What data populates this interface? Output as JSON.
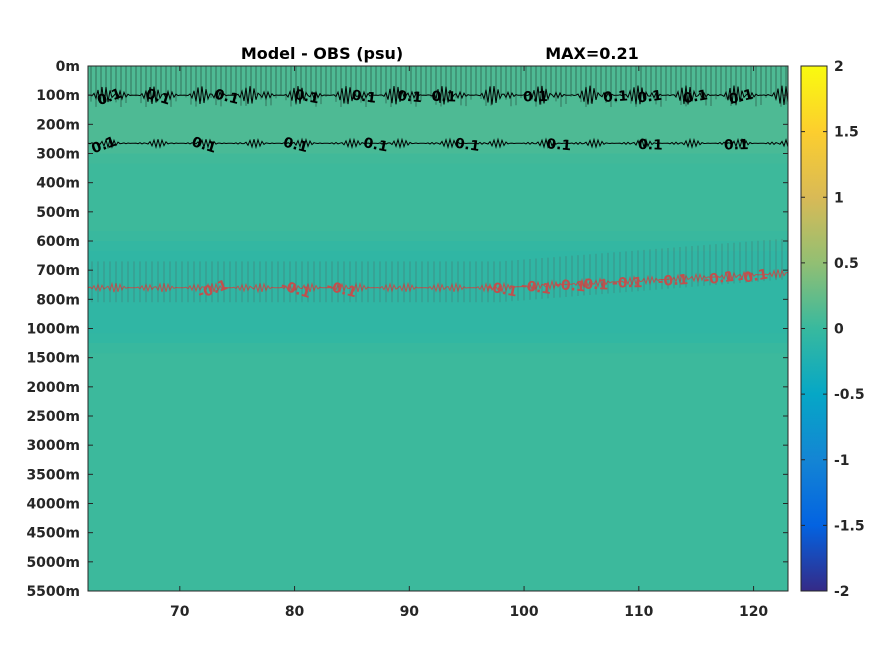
{
  "chart_data": {
    "type": "heatmap",
    "title": "Model - OBS (psu)",
    "annotation": "MAX=0.21",
    "x": {
      "lim": [
        62,
        123
      ],
      "ticks": [
        70,
        80,
        90,
        100,
        110,
        120
      ],
      "tick_labels": [
        "70",
        "80",
        "90",
        "100",
        "110",
        "120"
      ]
    },
    "y": {
      "tick_labels": [
        "0m",
        "100m",
        "200m",
        "300m",
        "400m",
        "500m",
        "600m",
        "700m",
        "800m",
        "1000m",
        "1500m",
        "2000m",
        "2500m",
        "3000m",
        "3500m",
        "4000m",
        "4500m",
        "5000m",
        "5500m"
      ]
    },
    "colorbar": {
      "lim": [
        -2,
        2
      ],
      "colormap": "parula",
      "ticks": [
        2,
        1.5,
        1,
        0.5,
        0,
        -0.5,
        -1,
        -1.5,
        -2
      ],
      "tick_labels": [
        "2",
        "1.5",
        "1",
        "0.5",
        "0",
        "-0.5",
        "-1",
        "-1.5",
        "-2"
      ]
    },
    "field_bands": [
      {
        "depth_index": [
          0,
          3
        ],
        "value": 0.12
      },
      {
        "depth_index": [
          3,
          6
        ],
        "value": 0.03
      },
      {
        "depth_index": [
          6,
          9.5
        ],
        "value": -0.08
      },
      {
        "depth_index": [
          9.5,
          18
        ],
        "value": 0.02
      }
    ],
    "contours": [
      {
        "level": 0.1,
        "color": "#000000",
        "label": "0.1",
        "depth_index": 2.65,
        "label_x": [
          63.5,
          72,
          80,
          87,
          95,
          103,
          111,
          118.5
        ]
      },
      {
        "level": 0.1,
        "color": "#000000",
        "label": "0.1",
        "depth_index": 1.0,
        "label_x": [
          64,
          68,
          74,
          81,
          86,
          90,
          93,
          101,
          108,
          111,
          115,
          119
        ]
      },
      {
        "level": -0.1,
        "color": "#c0504d",
        "label": "-0.1",
        "depth_index": 7.6,
        "label_x": [
          73,
          80,
          84,
          98,
          101,
          104,
          106,
          109,
          113,
          117,
          120
        ]
      }
    ]
  }
}
